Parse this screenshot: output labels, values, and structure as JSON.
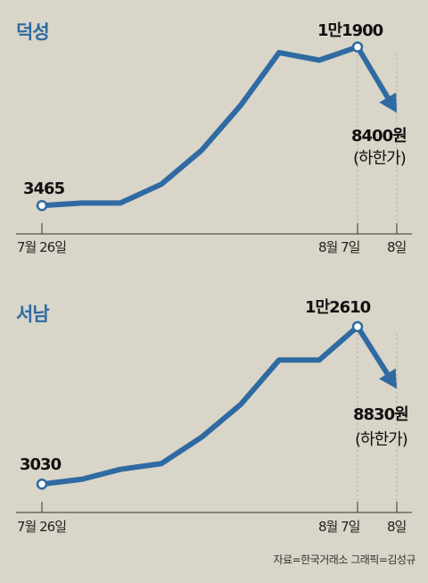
{
  "chart_data": [
    {
      "type": "line",
      "name": "덕성",
      "x": [
        "7월 26일",
        "",
        "",
        "",
        "",
        "",
        "",
        "",
        "8월 7일",
        "8일"
      ],
      "values": [
        3465,
        3600,
        3600,
        4600,
        6400,
        8800,
        11600,
        11200,
        11900,
        8400
      ],
      "start_label": "3465",
      "peak_label": "1만1900",
      "end_label": "8400원",
      "end_note": "(하한가)",
      "tick_labels": [
        "7월 26일",
        "8월 7일",
        "8일"
      ],
      "ylim": [
        3000,
        12500
      ],
      "color": "#2f6aa3"
    },
    {
      "type": "line",
      "name": "서남",
      "x": [
        "7월 26일",
        "",
        "",
        "",
        "",
        "",
        "",
        "",
        "8월 7일",
        "8일"
      ],
      "values": [
        3030,
        3330,
        3930,
        4280,
        5880,
        7880,
        10580,
        10580,
        12610,
        8830
      ],
      "start_label": "3030",
      "peak_label": "1만2610",
      "end_label": "8830원",
      "end_note": "(하한가)",
      "tick_labels": [
        "7월 26일",
        "8월 7일",
        "8일"
      ],
      "ylim": [
        2500,
        13200
      ],
      "color": "#2f6aa3"
    }
  ],
  "source": "자료=한국거래소  그래픽=김성규"
}
